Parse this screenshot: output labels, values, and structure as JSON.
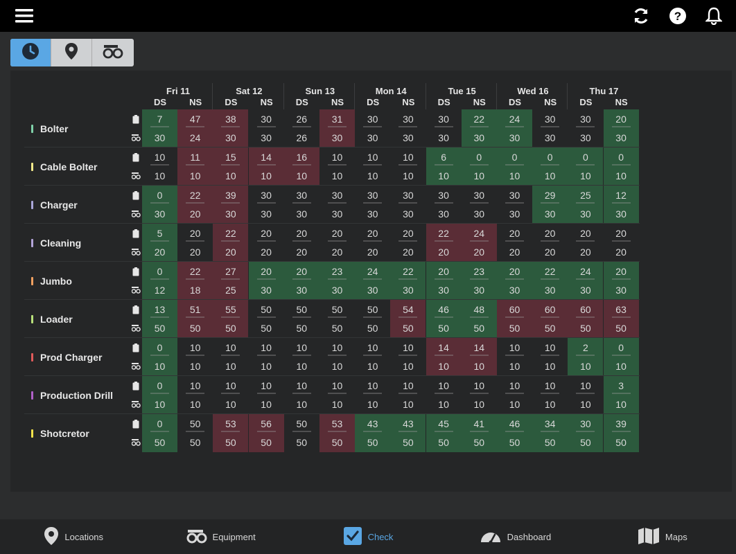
{
  "topbar": {
    "icons": [
      "menu-icon",
      "refresh-icon",
      "help-icon",
      "bell-icon"
    ]
  },
  "view_toggle": {
    "options": [
      "clock-icon",
      "location-pin-icon",
      "equipment-icon"
    ],
    "active": 0
  },
  "colors": {
    "green": "#2c5a3d",
    "red": "#5a2d36",
    "neutral": "#252627",
    "accent": "#5aa7e4"
  },
  "days": [
    {
      "label": "Fri 11",
      "shifts": [
        "DS",
        "NS"
      ]
    },
    {
      "label": "Sat 12",
      "shifts": [
        "DS",
        "NS"
      ]
    },
    {
      "label": "Sun 13",
      "shifts": [
        "DS",
        "NS"
      ]
    },
    {
      "label": "Mon 14",
      "shifts": [
        "DS",
        "NS"
      ]
    },
    {
      "label": "Tue 15",
      "shifts": [
        "DS",
        "NS"
      ]
    },
    {
      "label": "Wed 16",
      "shifts": [
        "DS",
        "NS"
      ]
    },
    {
      "label": "Thu 17",
      "shifts": [
        "DS",
        "NS"
      ]
    }
  ],
  "rows": [
    {
      "label": "Bolter",
      "color": "#7fd1a9",
      "top": [
        "7",
        "47",
        "38",
        "30",
        "26",
        "31",
        "30",
        "30",
        "30",
        "22",
        "24",
        "30",
        "30",
        "20"
      ],
      "bottom": [
        "30",
        "24",
        "30",
        "30",
        "26",
        "30",
        "30",
        "30",
        "30",
        "30",
        "30",
        "30",
        "30",
        "30"
      ],
      "status": [
        "g",
        "r",
        "r",
        "n",
        "n",
        "r",
        "n",
        "n",
        "n",
        "g",
        "g",
        "n",
        "n",
        "g"
      ]
    },
    {
      "label": "Cable Bolter",
      "color": "#f2e98a",
      "top": [
        "10",
        "11",
        "15",
        "14",
        "16",
        "10",
        "10",
        "10",
        "6",
        "0",
        "0",
        "0",
        "0",
        "0"
      ],
      "bottom": [
        "10",
        "10",
        "10",
        "10",
        "10",
        "10",
        "10",
        "10",
        "10",
        "10",
        "10",
        "10",
        "10",
        "10"
      ],
      "status": [
        "n",
        "r",
        "r",
        "r",
        "r",
        "n",
        "n",
        "n",
        "g",
        "g",
        "g",
        "g",
        "g",
        "g"
      ]
    },
    {
      "label": "Charger",
      "color": "#a9a6d8",
      "top": [
        "0",
        "22",
        "39",
        "30",
        "30",
        "30",
        "30",
        "30",
        "30",
        "30",
        "30",
        "29",
        "25",
        "12"
      ],
      "bottom": [
        "30",
        "20",
        "30",
        "30",
        "30",
        "30",
        "30",
        "30",
        "30",
        "30",
        "30",
        "30",
        "30",
        "30"
      ],
      "status": [
        "g",
        "r",
        "r",
        "n",
        "n",
        "n",
        "n",
        "n",
        "n",
        "n",
        "n",
        "g",
        "g",
        "g"
      ]
    },
    {
      "label": "Cleaning",
      "color": "#b3a4d9",
      "top": [
        "5",
        "20",
        "22",
        "20",
        "20",
        "20",
        "20",
        "20",
        "22",
        "24",
        "20",
        "20",
        "20",
        "20"
      ],
      "bottom": [
        "20",
        "20",
        "20",
        "20",
        "20",
        "20",
        "20",
        "20",
        "20",
        "20",
        "20",
        "20",
        "20",
        "20"
      ],
      "status": [
        "g",
        "n",
        "r",
        "n",
        "n",
        "n",
        "n",
        "n",
        "r",
        "r",
        "n",
        "n",
        "n",
        "n"
      ]
    },
    {
      "label": "Jumbo",
      "color": "#f0a060",
      "top": [
        "0",
        "22",
        "27",
        "20",
        "20",
        "23",
        "24",
        "22",
        "20",
        "23",
        "20",
        "22",
        "24",
        "20"
      ],
      "bottom": [
        "12",
        "18",
        "25",
        "30",
        "30",
        "30",
        "30",
        "30",
        "30",
        "30",
        "30",
        "30",
        "30",
        "30"
      ],
      "status": [
        "g",
        "r",
        "r",
        "g",
        "g",
        "g",
        "g",
        "g",
        "g",
        "g",
        "g",
        "g",
        "g",
        "g"
      ]
    },
    {
      "label": "Loader",
      "color": "#b8e07a",
      "top": [
        "13",
        "51",
        "55",
        "50",
        "50",
        "50",
        "50",
        "54",
        "46",
        "48",
        "60",
        "60",
        "60",
        "63"
      ],
      "bottom": [
        "50",
        "50",
        "50",
        "50",
        "50",
        "50",
        "50",
        "50",
        "50",
        "50",
        "50",
        "50",
        "50",
        "50"
      ],
      "status": [
        "g",
        "r",
        "r",
        "n",
        "n",
        "n",
        "n",
        "r",
        "g",
        "g",
        "r",
        "r",
        "r",
        "r"
      ]
    },
    {
      "label": "Prod Charger",
      "color": "#e05a5a",
      "top": [
        "0",
        "10",
        "10",
        "10",
        "10",
        "10",
        "10",
        "10",
        "14",
        "14",
        "10",
        "10",
        "2",
        "0"
      ],
      "bottom": [
        "10",
        "10",
        "10",
        "10",
        "10",
        "10",
        "10",
        "10",
        "10",
        "10",
        "10",
        "10",
        "10",
        "10"
      ],
      "status": [
        "g",
        "n",
        "n",
        "n",
        "n",
        "n",
        "n",
        "n",
        "r",
        "r",
        "n",
        "n",
        "g",
        "g"
      ]
    },
    {
      "label": "Production Drill",
      "color": "#b060c8",
      "top": [
        "0",
        "10",
        "10",
        "10",
        "10",
        "10",
        "10",
        "10",
        "10",
        "10",
        "10",
        "10",
        "10",
        "3"
      ],
      "bottom": [
        "10",
        "10",
        "10",
        "10",
        "10",
        "10",
        "10",
        "10",
        "10",
        "10",
        "10",
        "10",
        "10",
        "10"
      ],
      "status": [
        "g",
        "n",
        "n",
        "n",
        "n",
        "n",
        "n",
        "n",
        "n",
        "n",
        "n",
        "n",
        "n",
        "g"
      ]
    },
    {
      "label": "Shotcretor",
      "color": "#f2e24a",
      "top": [
        "0",
        "50",
        "53",
        "56",
        "50",
        "53",
        "43",
        "43",
        "45",
        "41",
        "46",
        "34",
        "30",
        "39"
      ],
      "bottom": [
        "50",
        "50",
        "50",
        "50",
        "50",
        "50",
        "50",
        "50",
        "50",
        "50",
        "50",
        "50",
        "50",
        "50"
      ],
      "status": [
        "g",
        "n",
        "r",
        "r",
        "n",
        "r",
        "g",
        "g",
        "g",
        "g",
        "g",
        "g",
        "g",
        "g"
      ]
    }
  ],
  "nav": {
    "tabs": [
      {
        "label": "Locations",
        "icon": "location-pin-icon"
      },
      {
        "label": "Equipment",
        "icon": "equipment-icon"
      },
      {
        "label": "Check",
        "icon": "check-icon"
      },
      {
        "label": "Dashboard",
        "icon": "gauge-icon"
      },
      {
        "label": "Maps",
        "icon": "map-icon"
      }
    ],
    "active": 2
  }
}
